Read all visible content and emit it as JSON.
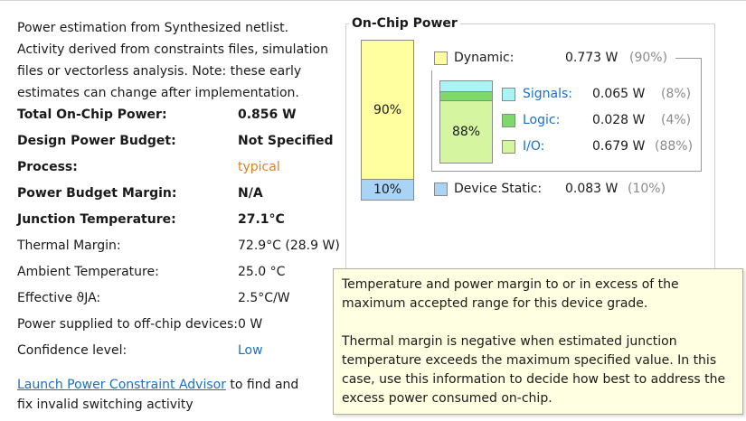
{
  "intro": "Power estimation from Synthesized netlist. Activity derived from constraints files, simulation files or vectorless analysis. Note: these early estimates can change after implementation.",
  "summary": [
    {
      "label": "Total On-Chip Power:",
      "value": "0.856 W",
      "bold": true
    },
    {
      "label": "Design Power Budget:",
      "value": "Not Specified",
      "bold": true
    },
    {
      "label": "Process:",
      "value": "typical",
      "bold": true,
      "value_style": "orange"
    },
    {
      "label": "Power Budget Margin:",
      "value": "N/A",
      "bold": true
    },
    {
      "label": "Junction Temperature:",
      "value": "27.1°C",
      "bold": true
    },
    {
      "label": "Thermal Margin:",
      "value": "72.9°C (28.9 W)",
      "bold": false
    },
    {
      "label": "Ambient Temperature:",
      "value": "25.0 °C",
      "bold": false
    },
    {
      "label": "Effective ϑJA:",
      "value": "2.5°C/W",
      "bold": false
    },
    {
      "label": "Power supplied to off-chip devices:",
      "value": "0 W",
      "bold": false
    },
    {
      "label": "Confidence level:",
      "value": "Low",
      "bold": false,
      "value_style": "blue"
    }
  ],
  "footer": {
    "link": "Launch Power Constraint Advisor",
    "text": " to find and fix invalid switching activity"
  },
  "onchip": {
    "title": "On-Chip Power",
    "bar_dynamic_pct": "90%",
    "bar_static_pct": "10%",
    "io_pct": "88%",
    "dynamic": {
      "label": "Dynamic:",
      "value": "0.773 W",
      "pct": "(90%)",
      "color": "#ffffa0"
    },
    "signals": {
      "label": "Signals:",
      "value": "0.065 W",
      "pct": "(8%)",
      "color": "#a8f5f5"
    },
    "logic": {
      "label": "Logic:",
      "value": "0.028 W",
      "pct": "(4%)",
      "color": "#7fd86a"
    },
    "io": {
      "label": "I/O:",
      "value": "0.679 W",
      "pct": "(88%)",
      "color": "#d6f5a0"
    },
    "static": {
      "label": "Device Static:",
      "value": "0.083 W",
      "pct": "(10%)",
      "color": "#a9d4f5"
    }
  },
  "tooltip": {
    "p1": "Temperature and power margin to or in excess of the maximum accepted range for this device grade.",
    "p2": "Thermal margin is negative when estimated junction temperature exceeds the maximum specified value. In this case, use this information to decide how best to address the excess power consumed on-chip."
  }
}
